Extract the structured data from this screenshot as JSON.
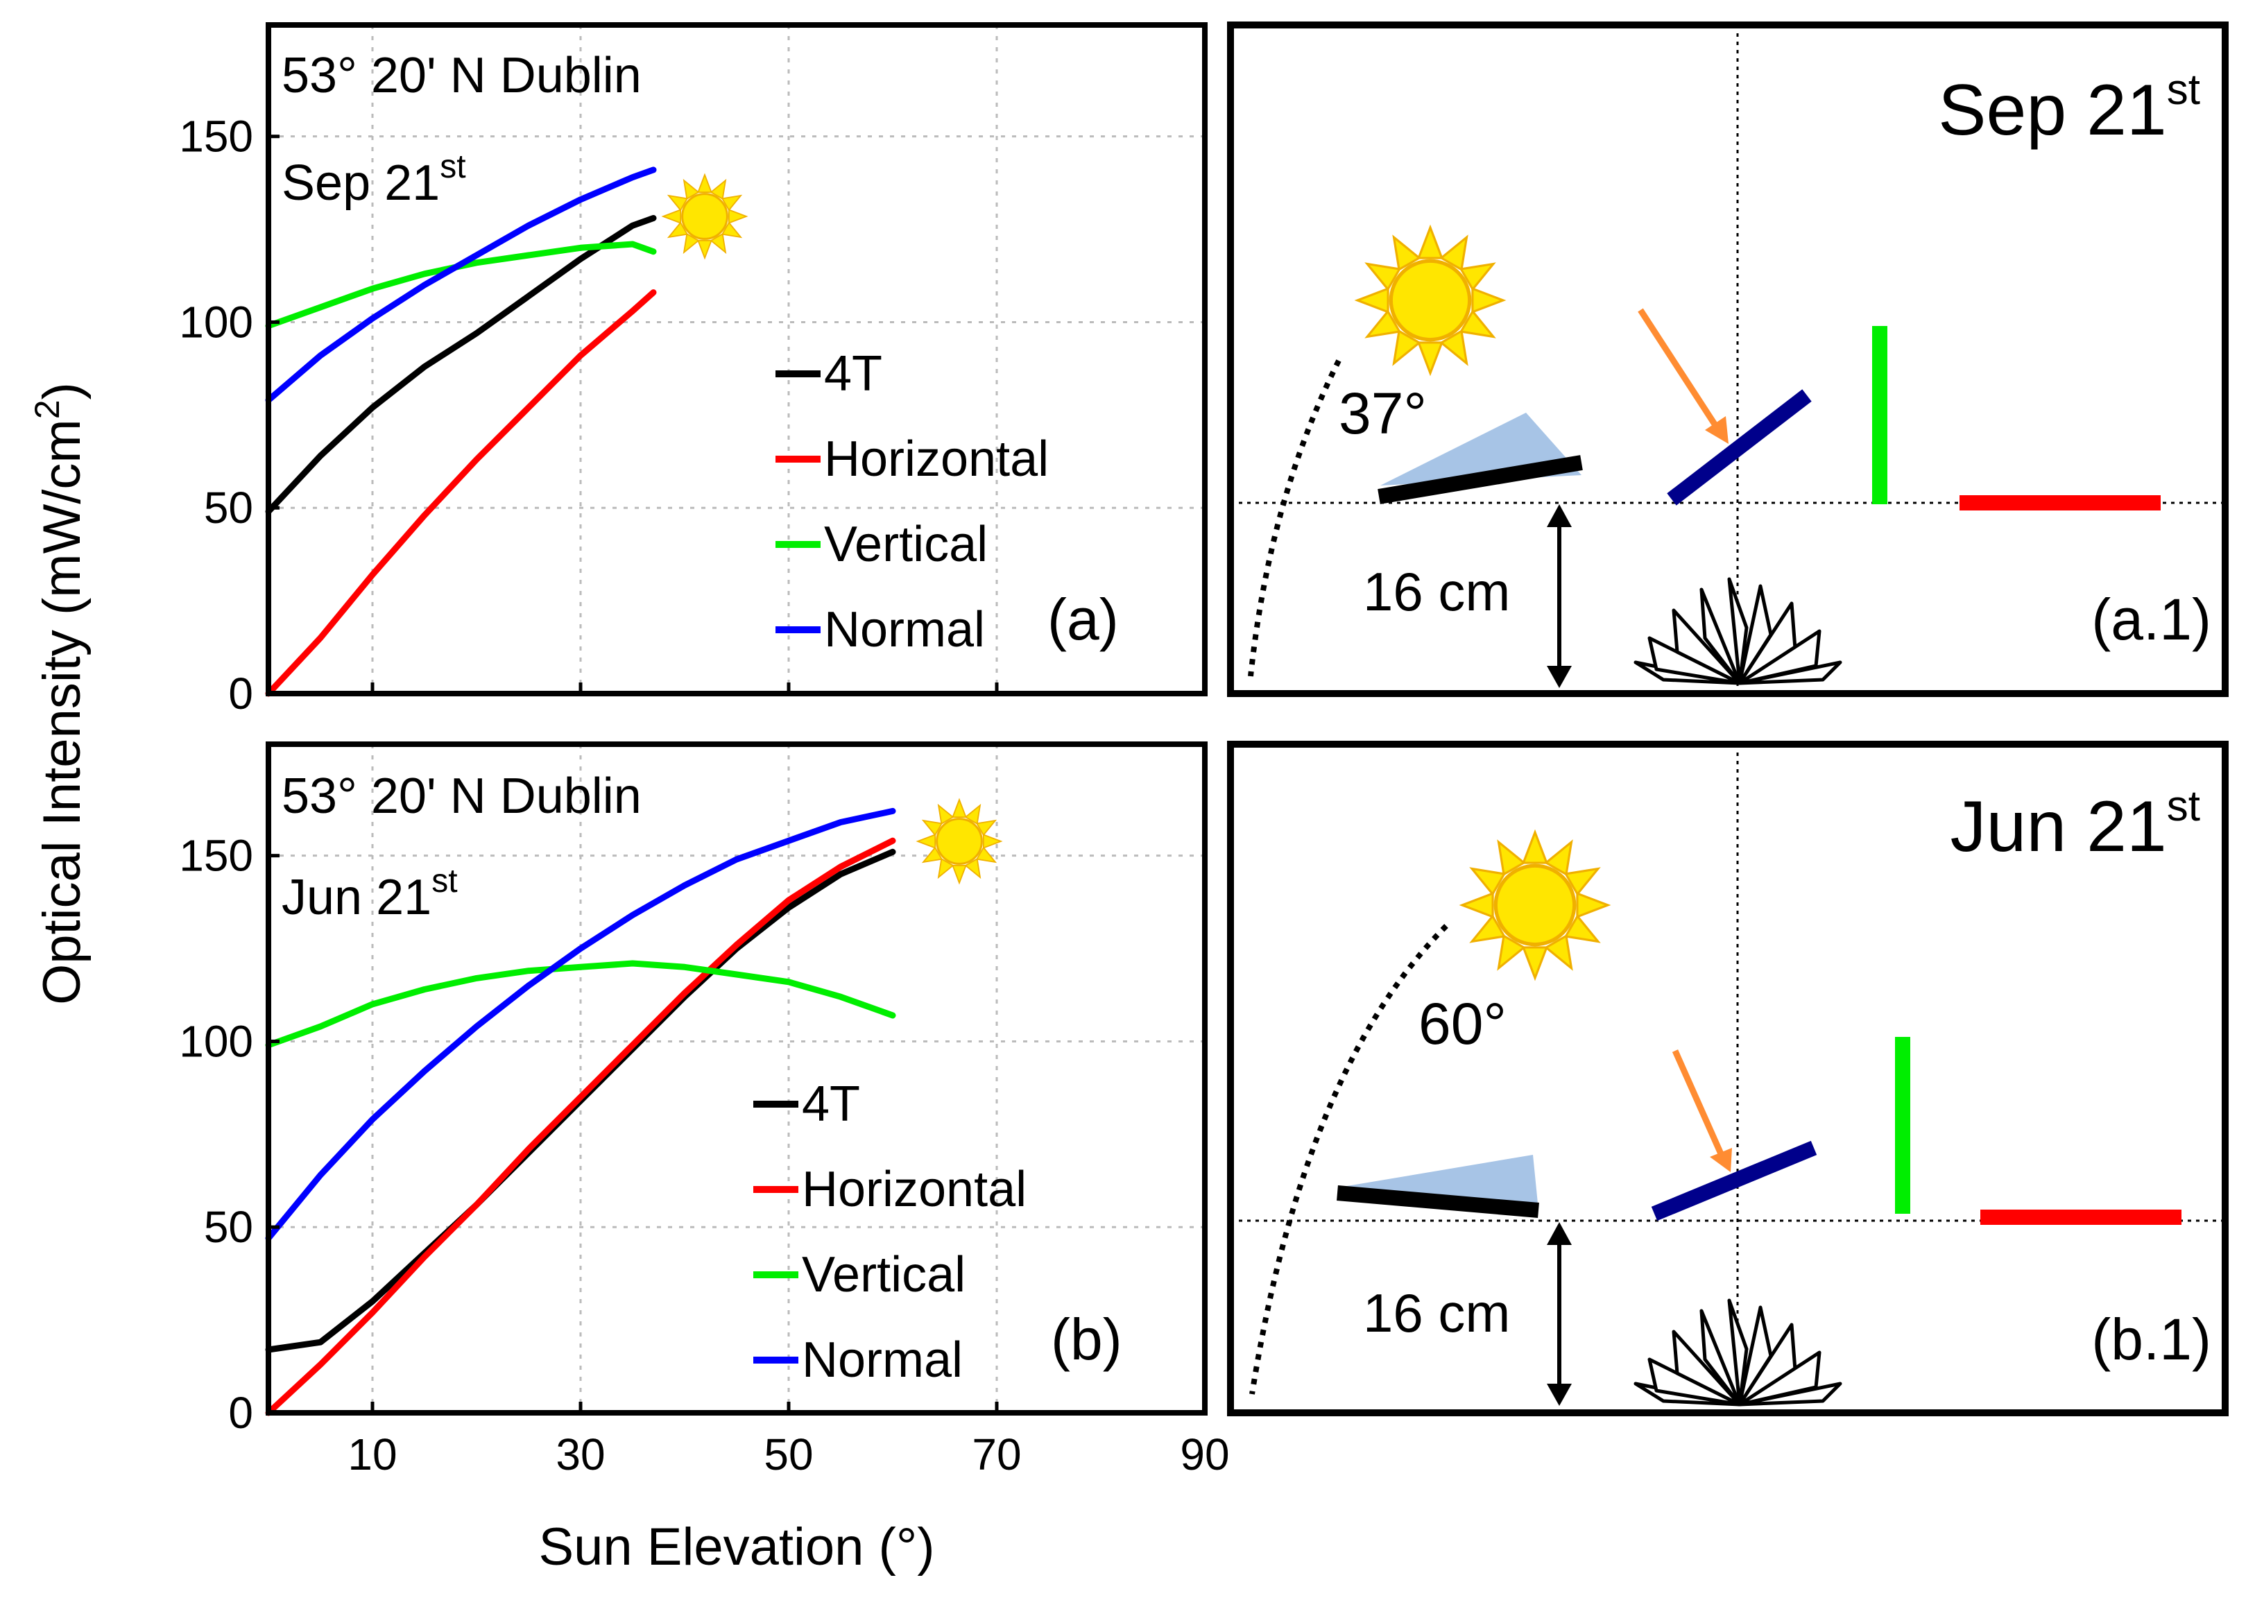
{
  "figure": {
    "ylabel": "Optical Intensity (mW/cm",
    "ylabel_sup": "2",
    "ylabel_end": ")",
    "xlabel": "Sun Elevation (°)"
  },
  "chart_data": [
    {
      "id": "a",
      "type": "line",
      "panel_label": "(a)",
      "location": "53° 20' N Dublin",
      "date": "Sep 21",
      "date_sup": "st",
      "xlim": [
        0,
        90
      ],
      "ylim": [
        0,
        180
      ],
      "xticks": [
        10,
        30,
        50,
        70,
        90
      ],
      "yticks": [
        0,
        50,
        100,
        150
      ],
      "grid": true,
      "legend_position": "center-right",
      "series": [
        {
          "name": "4T",
          "color": "#000000",
          "x": [
            0,
            5,
            10,
            15,
            20,
            25,
            30,
            35,
            37
          ],
          "y": [
            49,
            64,
            77,
            88,
            97,
            107,
            117,
            126,
            128
          ]
        },
        {
          "name": "Horizontal",
          "color": "#ff0000",
          "x": [
            0,
            5,
            10,
            15,
            20,
            25,
            30,
            35,
            37
          ],
          "y": [
            0,
            15,
            32,
            48,
            63,
            77,
            91,
            103,
            108
          ]
        },
        {
          "name": "Vertical",
          "color": "#00ee00",
          "x": [
            0,
            5,
            10,
            15,
            20,
            25,
            30,
            35,
            37
          ],
          "y": [
            99,
            104,
            109,
            113,
            116,
            118,
            120,
            121,
            119
          ]
        },
        {
          "name": "Normal",
          "color": "#0000ff",
          "x": [
            0,
            5,
            10,
            15,
            20,
            25,
            30,
            35,
            37
          ],
          "y": [
            79,
            91,
            101,
            110,
            118,
            126,
            133,
            139,
            141
          ]
        }
      ]
    },
    {
      "id": "b",
      "type": "line",
      "panel_label": "(b)",
      "location": "53° 20' N Dublin",
      "date": "Jun 21",
      "date_sup": "st",
      "xlim": [
        0,
        90
      ],
      "ylim": [
        0,
        180
      ],
      "xticks": [
        10,
        30,
        50,
        70,
        90
      ],
      "yticks": [
        0,
        50,
        100,
        150
      ],
      "grid": true,
      "legend_position": "lower-center",
      "series": [
        {
          "name": "4T",
          "color": "#000000",
          "x": [
            0,
            5,
            10,
            15,
            20,
            25,
            30,
            35,
            40,
            45,
            50,
            55,
            60
          ],
          "y": [
            17,
            19,
            30,
            43,
            56,
            70,
            84,
            98,
            112,
            125,
            136,
            145,
            151
          ]
        },
        {
          "name": "Horizontal",
          "color": "#ff0000",
          "x": [
            0,
            5,
            10,
            15,
            20,
            25,
            30,
            35,
            40,
            45,
            50,
            55,
            60
          ],
          "y": [
            0,
            13,
            27,
            42,
            56,
            71,
            85,
            99,
            113,
            126,
            138,
            147,
            154
          ]
        },
        {
          "name": "Vertical",
          "color": "#00ee00",
          "x": [
            0,
            5,
            10,
            15,
            20,
            25,
            30,
            35,
            40,
            45,
            50,
            55,
            60
          ],
          "y": [
            99,
            104,
            110,
            114,
            117,
            119,
            120,
            121,
            120,
            118,
            116,
            112,
            107
          ]
        },
        {
          "name": "Normal",
          "color": "#0000ff",
          "x": [
            0,
            5,
            10,
            15,
            20,
            25,
            30,
            35,
            40,
            45,
            50,
            55,
            60
          ],
          "y": [
            47,
            64,
            79,
            92,
            104,
            115,
            125,
            134,
            142,
            149,
            154,
            159,
            162
          ]
        }
      ]
    }
  ],
  "diagrams": [
    {
      "id": "a1",
      "title": "Sep 21",
      "title_sup": "st",
      "panel_label": "(a.1)",
      "sun_angle": "37°",
      "height_label": "16 cm"
    },
    {
      "id": "b1",
      "title": "Jun 21",
      "title_sup": "st",
      "panel_label": "(b.1)",
      "sun_angle": "60°",
      "height_label": "16 cm"
    }
  ],
  "colors": {
    "horizontal": "#ff0000",
    "vertical": "#00ee00",
    "normal": "#0000ff",
    "tracker": "#000000",
    "arrow": "#ff8c32",
    "wedge": "#a7c4e6",
    "sun": "#ffe600",
    "sun_ray": "#f5b800"
  }
}
